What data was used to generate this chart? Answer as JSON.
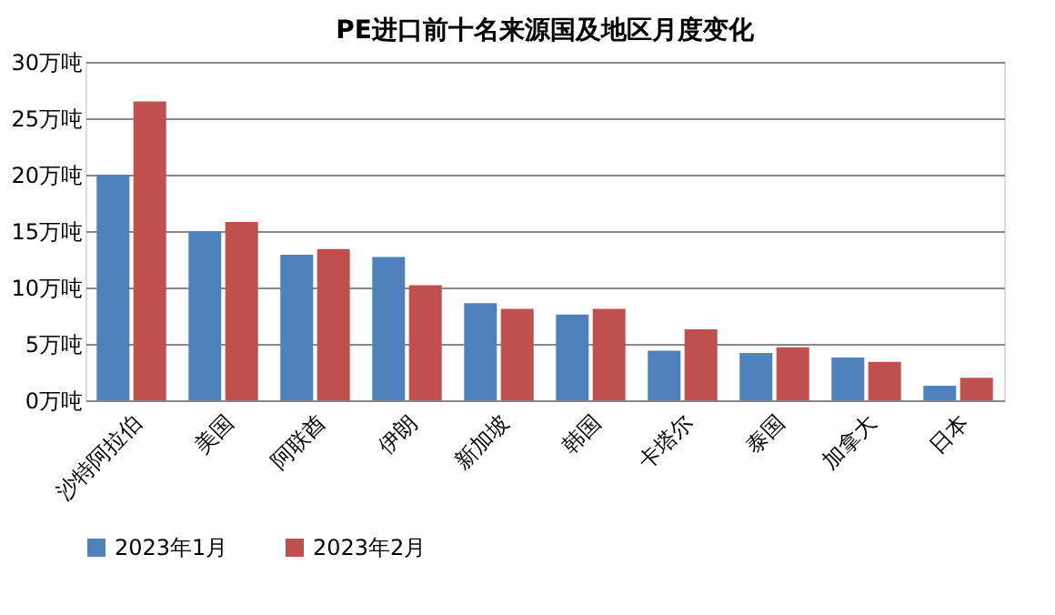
{
  "chart_data": {
    "type": "bar",
    "title": "PE进口前十名来源国及地区月度变化",
    "categories": [
      "沙特阿拉伯",
      "美国",
      "阿联酋",
      "伊朗",
      "新加坡",
      "韩国",
      "卡塔尔",
      "泰国",
      "加拿大",
      "日本"
    ],
    "series": [
      {
        "name": "2023年1月",
        "color": "#4f81bd",
        "values": [
          20,
          15,
          12.9,
          12.7,
          8.6,
          7.6,
          4.4,
          4.2,
          3.8,
          1.3
        ]
      },
      {
        "name": "2023年2月",
        "color": "#c0504d",
        "values": [
          26.5,
          15.8,
          13.4,
          10.2,
          8.1,
          8.1,
          6.3,
          4.7,
          3.4,
          2.0
        ]
      }
    ],
    "ylim": [
      0,
      30
    ],
    "yticks": [
      {
        "value": 0,
        "label": "0万吨"
      },
      {
        "value": 5,
        "label": "5万吨"
      },
      {
        "value": 10,
        "label": "10万吨"
      },
      {
        "value": 15,
        "label": "15万吨"
      },
      {
        "value": 20,
        "label": "20万吨"
      },
      {
        "value": 25,
        "label": "25万吨"
      },
      {
        "value": 30,
        "label": "30万吨"
      }
    ],
    "grid": "y",
    "legend": "bottom"
  }
}
